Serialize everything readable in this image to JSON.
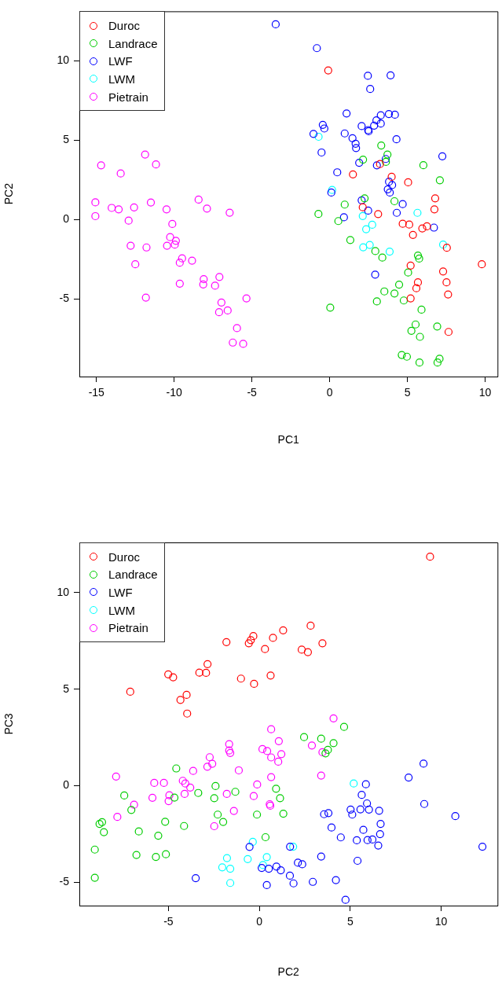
{
  "chart_data": [
    {
      "type": "scatter",
      "xlabel": "PC1",
      "ylabel": "PC2",
      "xlim": [
        -16.1,
        10.8
      ],
      "ylim": [
        -9.9,
        13.1
      ],
      "xticks": [
        -15,
        -10,
        -5,
        0,
        5,
        10
      ],
      "yticks": [
        -5,
        0,
        5,
        10
      ],
      "legend": "top left",
      "marker": "circle",
      "series": [
        {
          "name": "Duroc",
          "color": "#ff0000",
          "x": [
            -0.09,
            3.24,
            1.5,
            3.99,
            5.05,
            6.79,
            2.13,
            6.74,
            3.12,
            4.7,
            5.12,
            5.96,
            6.26,
            5.36,
            7.54,
            9.79,
            5.21,
            7.3,
            5.68,
            7.52,
            5.58,
            7.62,
            5.21,
            7.65
          ],
          "values": [
            9.38,
            3.48,
            2.83,
            2.68,
            2.33,
            1.32,
            0.76,
            0.63,
            0.33,
            -0.28,
            -0.33,
            -0.57,
            -0.44,
            -0.98,
            -1.79,
            -2.83,
            -2.91,
            -3.28,
            -3.97,
            -3.97,
            -4.34,
            -4.73,
            -4.98,
            -7.09
          ]
        },
        {
          "name": "Landrace",
          "color": "#00cd00",
          "x": [
            3.32,
            3.72,
            3.62,
            2.15,
            6.03,
            7.09,
            2.25,
            4.17,
            0.97,
            -0.72,
            0.56,
            1.33,
            2.94,
            3.39,
            5.68,
            5.76,
            5.05,
            4.47,
            3.52,
            4.17,
            4.77,
            3.04,
            0.04,
            5.91,
            5.53,
            5.26,
            6.92,
            5.81,
            4.64,
            4.97,
            5.78,
            7.07,
            6.94
          ],
          "values": [
            4.65,
            4.08,
            3.62,
            3.76,
            3.41,
            2.46,
            1.32,
            1.14,
            0.93,
            0.34,
            -0.11,
            -1.3,
            -2.0,
            -2.41,
            -2.28,
            -2.47,
            -3.35,
            -4.11,
            -4.54,
            -4.67,
            -5.11,
            -5.17,
            -5.56,
            -5.69,
            -6.62,
            -7.02,
            -6.75,
            -7.4,
            -8.54,
            -8.65,
            -9.02,
            -8.78,
            -9.02
          ]
        },
        {
          "name": "LWF",
          "color": "#0000ff",
          "x": [
            -3.47,
            -0.82,
            2.46,
            3.92,
            2.61,
            1.09,
            3.29,
            3.81,
            4.2,
            3.01,
            3.29,
            2.86,
            2.06,
            2.48,
            2.51,
            -0.44,
            -0.34,
            -1.04,
            0.97,
            1.47,
            1.67,
            1.7,
            4.3,
            -0.52,
            7.25,
            1.9,
            3.61,
            3.04,
            0.49,
            3.82,
            4.02,
            3.74,
            3.87,
            0.11,
            2.06,
            4.7,
            2.48,
            0.92,
            4.32,
            6.71,
            2.93
          ],
          "values": [
            12.28,
            10.78,
            9.04,
            9.07,
            8.21,
            6.67,
            6.55,
            6.63,
            6.59,
            6.23,
            6.03,
            5.9,
            5.87,
            5.62,
            5.55,
            5.95,
            5.72,
            5.38,
            5.41,
            5.11,
            4.76,
            4.49,
            5.04,
            4.21,
            3.97,
            3.56,
            3.8,
            3.4,
            2.96,
            2.37,
            2.16,
            1.89,
            1.69,
            1.69,
            1.2,
            0.96,
            0.55,
            0.13,
            0.41,
            -0.52,
            -3.48
          ]
        },
        {
          "name": "LWM",
          "color": "#00ffff",
          "x": [
            -0.71,
            0.16,
            2.13,
            5.65,
            2.74,
            2.35,
            2.58,
            2.16,
            3.86,
            7.3
          ],
          "values": [
            5.2,
            1.85,
            0.21,
            0.41,
            -0.34,
            -0.62,
            -1.61,
            -1.76,
            -2.03,
            -1.59
          ]
        },
        {
          "name": "Pietrain",
          "color": "#ff00ff",
          "x": [
            -11.87,
            -14.7,
            -11.17,
            -13.44,
            -15.07,
            -8.43,
            -14.02,
            -13.57,
            -12.58,
            -11.5,
            -10.49,
            -7.89,
            -6.43,
            -15.07,
            -12.93,
            -10.12,
            -10.26,
            -9.89,
            -10.46,
            -9.96,
            -12.8,
            -11.78,
            -9.49,
            -9.64,
            -8.85,
            -12.5,
            -7.09,
            -8.1,
            -8.13,
            -9.64,
            -7.37,
            -11.82,
            -5.35,
            -6.96,
            -7.11,
            -6.56,
            -5.96,
            -6.23,
            -5.56
          ],
          "values": [
            4.08,
            3.4,
            3.46,
            2.89,
            1.07,
            1.24,
            0.72,
            0.63,
            0.75,
            1.06,
            0.63,
            0.68,
            0.42,
            0.2,
            -0.08,
            -0.29,
            -1.12,
            -1.35,
            -1.66,
            -1.59,
            -1.66,
            -1.77,
            -2.46,
            -2.73,
            -2.6,
            -2.83,
            -3.63,
            -3.77,
            -4.1,
            -4.05,
            -4.18,
            -4.93,
            -4.98,
            -5.24,
            -5.85,
            -5.74,
            -6.85,
            -7.76,
            -7.84
          ]
        }
      ]
    },
    {
      "type": "scatter",
      "xlabel": "PC2",
      "ylabel": "PC3",
      "xlim": [
        -9.9,
        13.1
      ],
      "ylim": [
        -6.2,
        12.6
      ],
      "xticks": [
        -5,
        0,
        5,
        10
      ],
      "yticks": [
        -5,
        0,
        5,
        10
      ],
      "legend": "top left",
      "marker": "circle",
      "series": [
        {
          "name": "Duroc",
          "color": "#ff0000",
          "x": [
            -1.81,
            -0.58,
            -0.47,
            -0.33,
            0.31,
            0.75,
            -2.85,
            -3.3,
            -2.93,
            -5.01,
            -4.74,
            -1.01,
            -0.29,
            0.62,
            -7.1,
            -4.0,
            -4.34,
            -3.97,
            9.39,
            1.31,
            2.82,
            3.47,
            2.33,
            2.67
          ],
          "values": [
            7.44,
            7.38,
            7.54,
            7.75,
            7.08,
            7.66,
            6.3,
            5.86,
            5.85,
            5.77,
            5.62,
            5.55,
            5.28,
            5.71,
            4.87,
            4.71,
            4.45,
            3.74,
            11.86,
            8.05,
            8.29,
            7.38,
            7.05,
            6.92
          ]
        },
        {
          "name": "Landrace",
          "color": "#00cd00",
          "x": [
            -4.57,
            -7.43,
            -7.04,
            -4.67,
            -3.36,
            -2.41,
            -2.48,
            -1.32,
            -2.29,
            -1.99,
            -0.13,
            -8.79,
            -8.65,
            -8.55,
            -6.63,
            -5.18,
            -4.14,
            -5.56,
            0.34,
            -9.05,
            -6.76,
            -5.69,
            -5.14,
            -9.05,
            4.66,
            2.46,
            3.4,
            4.08,
            3.77,
            3.64,
            0.92,
            1.14,
            1.32
          ],
          "values": [
            0.9,
            -0.5,
            -1.25,
            -0.61,
            -0.37,
            -0.01,
            -0.64,
            -0.31,
            -1.49,
            -1.87,
            -1.49,
            -1.97,
            -1.88,
            -2.4,
            -2.36,
            -1.86,
            -2.08,
            -2.58,
            -2.66,
            -3.3,
            -3.58,
            -3.68,
            -3.54,
            -4.76,
            3.05,
            2.52,
            2.44,
            2.21,
            1.86,
            1.68,
            -0.15,
            -0.64,
            -1.44
          ]
        },
        {
          "name": "LWF",
          "color": "#0000ff",
          "x": [
            -0.54,
            -3.5,
            0.13,
            0.52,
            0.41,
            9.03,
            8.21,
            5.86,
            5.63,
            5.92,
            9.07,
            5.02,
            5.56,
            6.03,
            6.59,
            5.11,
            3.56,
            3.8,
            10.78,
            6.67,
            3.97,
            5.72,
            6.64,
            4.48,
            5.36,
            5.95,
            6.22,
            6.54,
            12.27,
            1.69,
            3.4,
            5.4,
            2.12,
            2.36,
            0.94,
            1.18,
            1.68,
            1.88,
            2.94,
            4.21,
            4.74
          ],
          "values": [
            -3.16,
            -4.78,
            -4.25,
            -4.29,
            -5.14,
            1.15,
            0.43,
            0.08,
            -0.47,
            -0.91,
            -0.94,
            -1.23,
            -1.22,
            -1.23,
            -1.29,
            -1.49,
            -1.47,
            -1.41,
            -1.57,
            -1.97,
            -2.16,
            -2.28,
            -2.5,
            -2.67,
            -2.82,
            -2.81,
            -2.78,
            -3.09,
            -3.15,
            -3.15,
            -3.66,
            -3.88,
            -3.98,
            -4.06,
            -4.18,
            -4.37,
            -4.65,
            -5.05,
            -4.97,
            -4.88,
            -5.9
          ]
        },
        {
          "name": "LWM",
          "color": "#00ffff",
          "x": [
            -0.36,
            -1.78,
            -0.64,
            0.41,
            0.2,
            -2.04,
            -1.6,
            -1.6,
            5.19,
            1.86
          ],
          "values": [
            -2.9,
            -3.74,
            -3.79,
            -3.69,
            -4.1,
            -4.22,
            -4.29,
            -5.03,
            0.12,
            -3.15
          ]
        },
        {
          "name": "Pietrain",
          "color": "#ff00ff",
          "x": [
            0.65,
            -1.66,
            -1.66,
            -1.6,
            -2.73,
            -2.59,
            -2.86,
            0.17,
            0.43,
            0.65,
            -1.13,
            -3.64,
            -7.88,
            -5.78,
            -5.25,
            -4.21,
            -4.07,
            -3.8,
            -0.12,
            0.65,
            -4.11,
            -4.95,
            -4.99,
            -5.88,
            -1.79,
            -0.31,
            -6.89,
            0.57,
            0.6,
            -1.4,
            -7.81,
            -2.48,
            1.07,
            2.89,
            4.08,
            1.21,
            1.04,
            3.47,
            3.4
          ],
          "values": [
            2.93,
            2.16,
            1.83,
            1.7,
            1.48,
            1.14,
            0.99,
            1.9,
            1.8,
            1.47,
            0.8,
            0.77,
            0.48,
            0.15,
            0.15,
            0.26,
            0.12,
            -0.09,
            0.07,
            0.45,
            -0.42,
            -0.49,
            -0.79,
            -0.62,
            -0.42,
            -0.53,
            -0.98,
            -0.95,
            -1.03,
            -1.3,
            -1.61,
            -2.09,
            2.31,
            2.09,
            3.49,
            1.64,
            1.25,
            1.74,
            0.53
          ]
        }
      ]
    }
  ]
}
